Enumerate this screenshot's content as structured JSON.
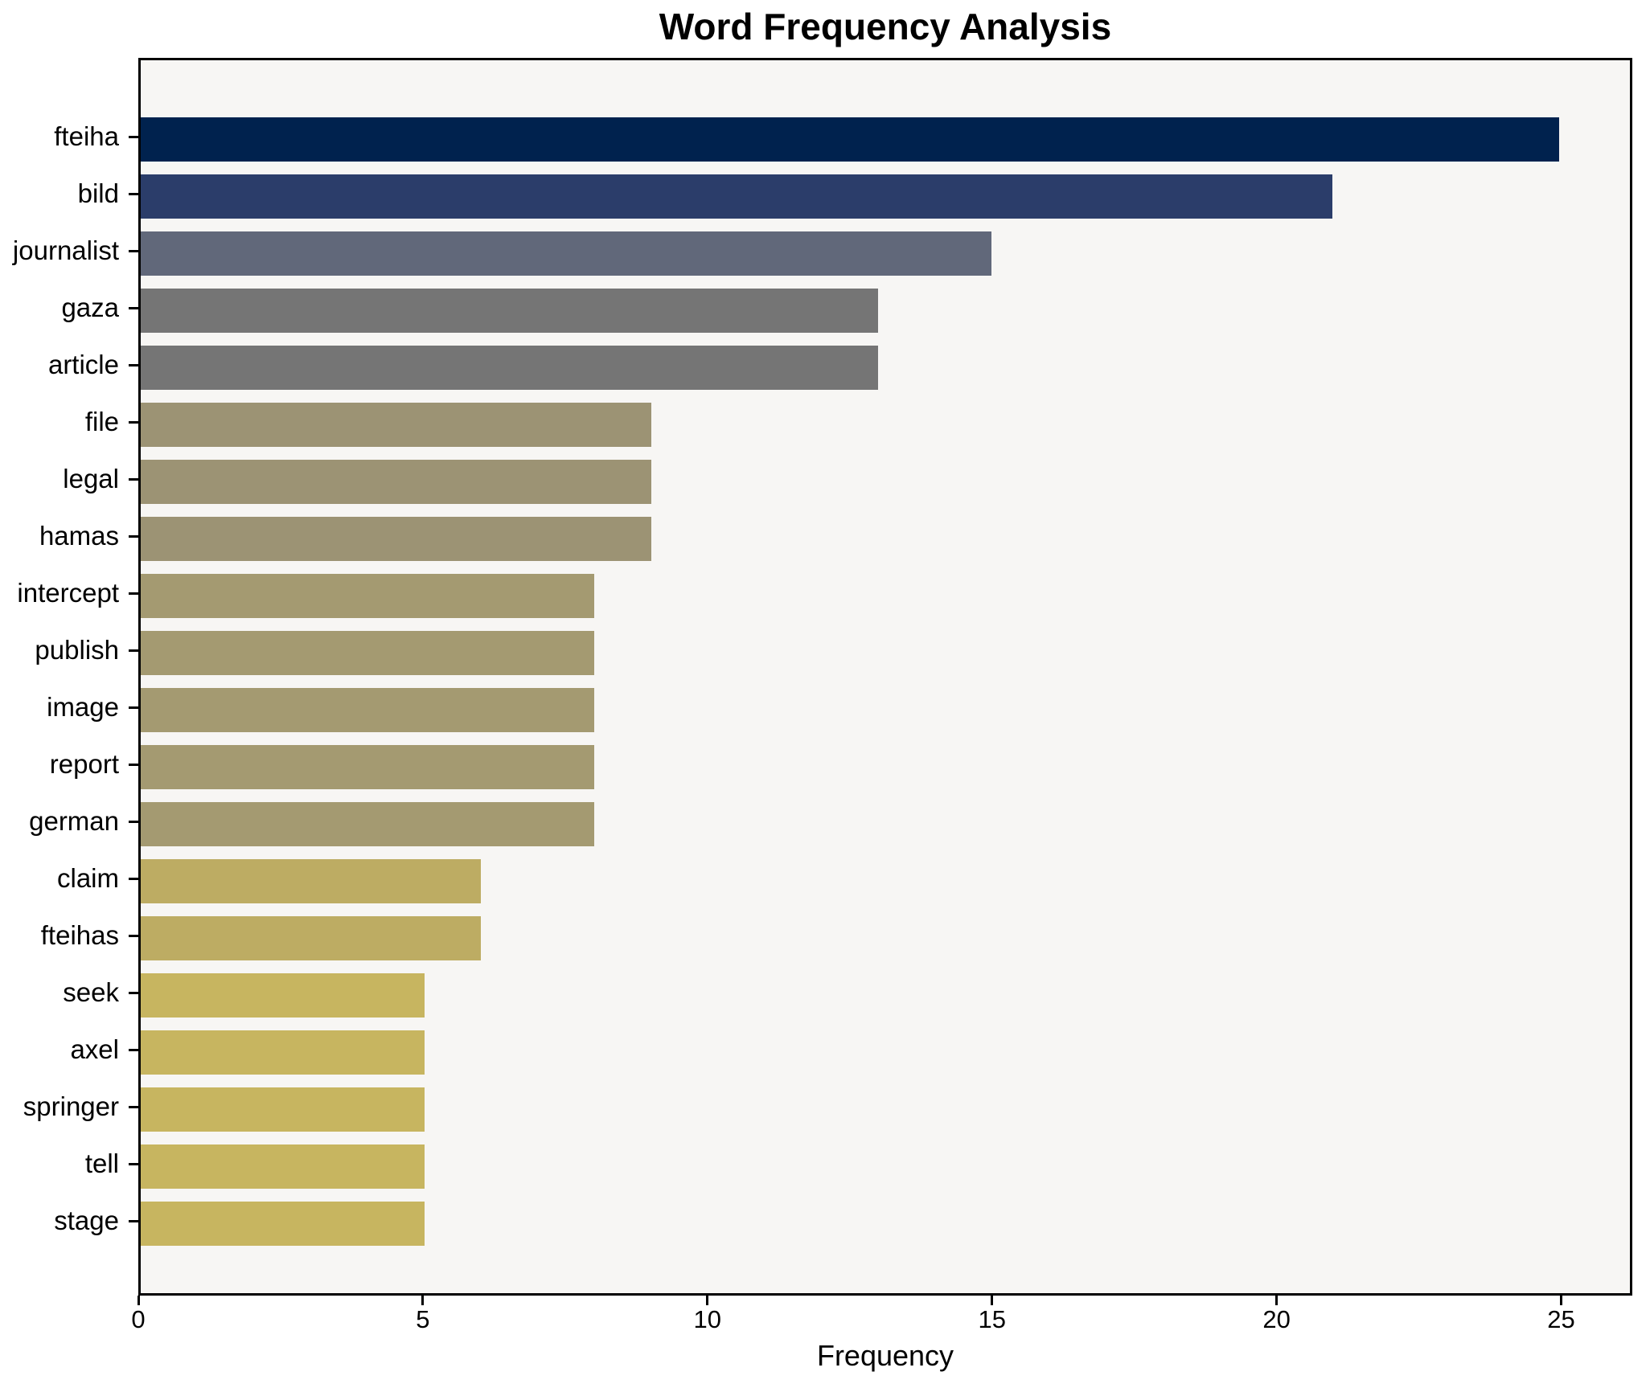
{
  "chart": {
    "title": "Word Frequency Analysis",
    "xlabel": "Frequency"
  },
  "chart_data": {
    "type": "bar",
    "orientation": "horizontal",
    "title": "Word Frequency Analysis",
    "xlabel": "Frequency",
    "ylabel": "",
    "categories": [
      "fteiha",
      "bild",
      "journalist",
      "gaza",
      "article",
      "file",
      "legal",
      "hamas",
      "intercept",
      "publish",
      "image",
      "report",
      "german",
      "claim",
      "fteihas",
      "seek",
      "axel",
      "springer",
      "tell",
      "stage"
    ],
    "values": [
      25,
      21,
      15,
      13,
      13,
      9,
      9,
      9,
      8,
      8,
      8,
      8,
      8,
      6,
      6,
      5,
      5,
      5,
      5,
      5
    ],
    "bar_colors": [
      "#00224e",
      "#2b3d6a",
      "#61687a",
      "#757575",
      "#757575",
      "#9c9374",
      "#9c9374",
      "#9c9374",
      "#a49a71",
      "#a49a71",
      "#a49a71",
      "#a49a71",
      "#a49a71",
      "#bdac63",
      "#bdac63",
      "#c7b560",
      "#c7b560",
      "#c7b560",
      "#c7b560",
      "#c7b560"
    ],
    "xlim": [
      0,
      26.25
    ],
    "xticks": [
      0,
      5,
      10,
      15,
      20,
      25
    ],
    "grid": false,
    "legend": null,
    "plot_bg": "#f7f6f4",
    "figure_bg": "#ffffff",
    "spine_color": "#000000"
  }
}
